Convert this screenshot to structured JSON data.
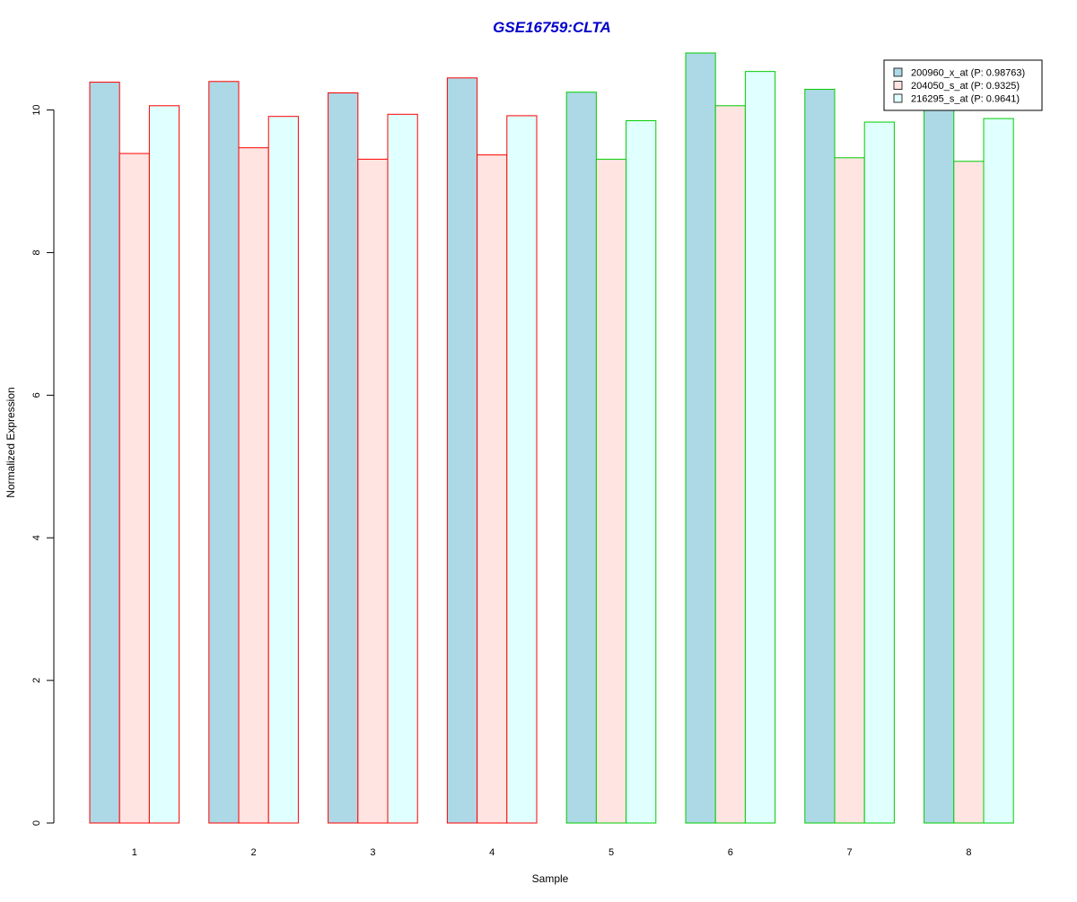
{
  "chart_data": {
    "type": "bar",
    "title": "GSE16759:CLTA",
    "xlabel": "Sample",
    "ylabel": "Normalized Expression",
    "categories": [
      "1",
      "2",
      "3",
      "4",
      "5",
      "6",
      "7",
      "8"
    ],
    "ylim": [
      0,
      10.8
    ],
    "yticks": [
      0,
      2,
      4,
      6,
      8,
      10
    ],
    "group_outline_colors": [
      "#ff0000",
      "#ff0000",
      "#ff0000",
      "#ff0000",
      "#00cc00",
      "#00cc00",
      "#00cc00",
      "#00cc00"
    ],
    "series": [
      {
        "name": "200960_x_at (P: 0.98763)",
        "color": "#add8e6",
        "values": [
          10.39,
          10.4,
          10.24,
          10.45,
          10.25,
          10.8,
          10.29,
          10.04
        ]
      },
      {
        "name": "204050_s_at (P: 0.9325)",
        "color": "#ffe4e1",
        "values": [
          9.39,
          9.47,
          9.31,
          9.37,
          9.31,
          10.06,
          9.33,
          9.28
        ]
      },
      {
        "name": "216295_s_at (P: 0.9641)",
        "color": "#e0ffff",
        "values": [
          10.06,
          9.91,
          9.94,
          9.92,
          9.85,
          10.54,
          9.83,
          9.88
        ]
      }
    ],
    "legend_position": "top-right",
    "grid": false,
    "colors": {
      "title": "#0000cc",
      "axis": "#000000"
    }
  }
}
